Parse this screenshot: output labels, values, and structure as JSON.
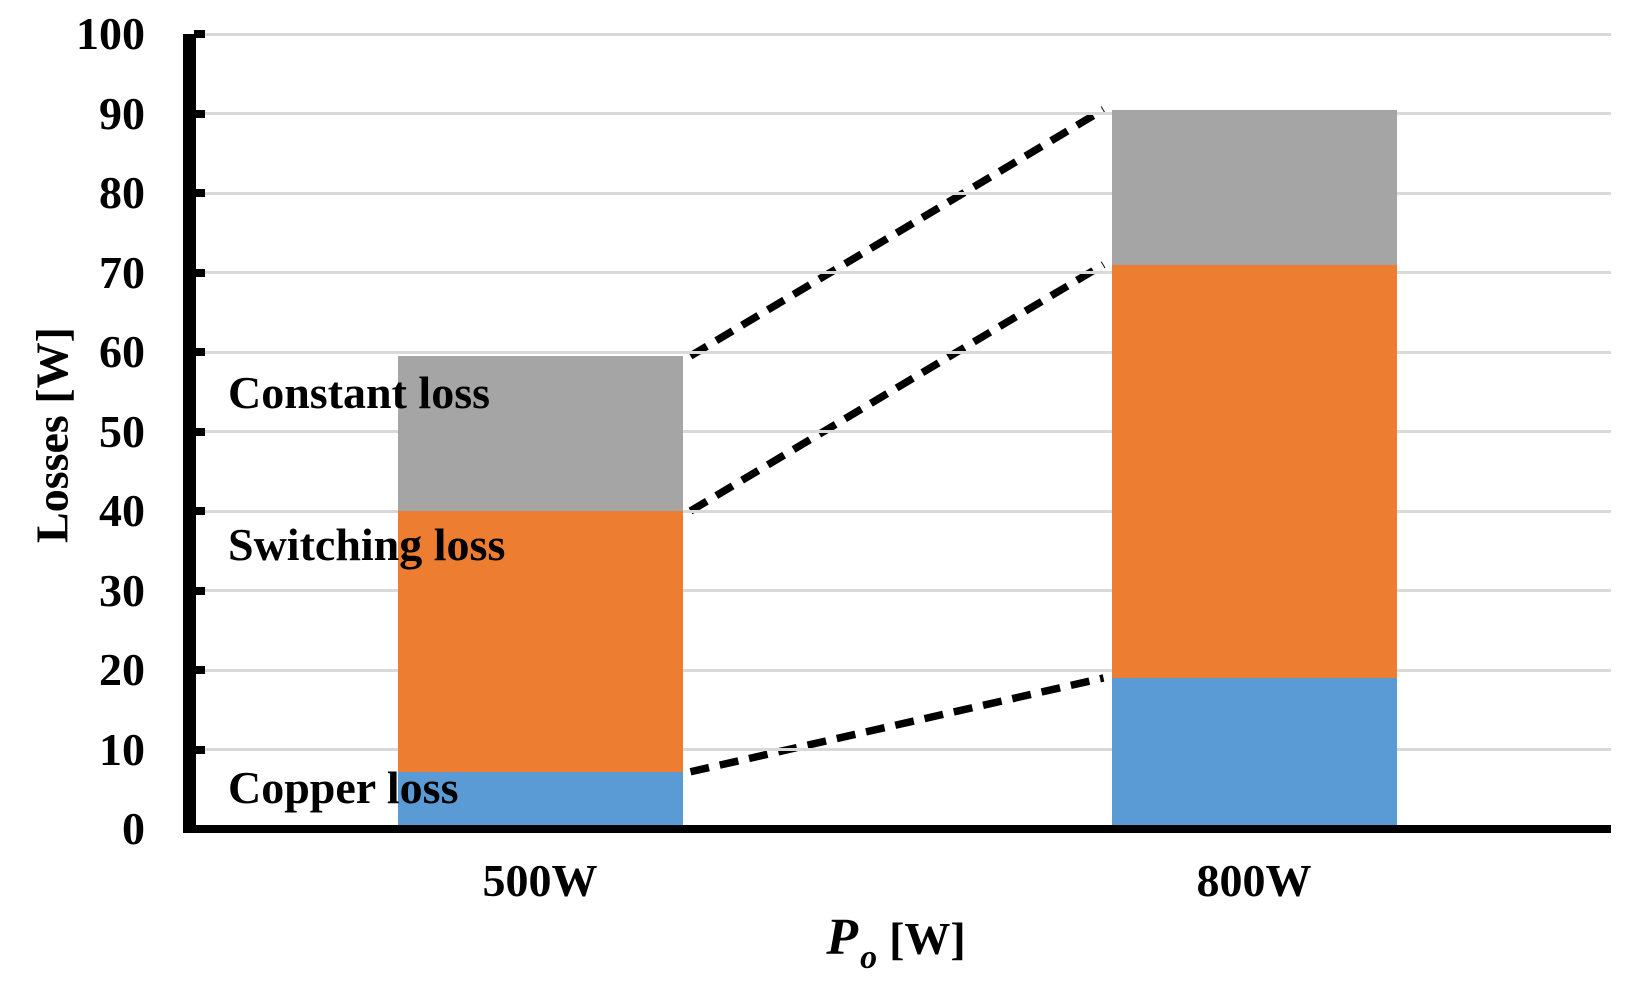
{
  "chart_data": {
    "type": "bar",
    "stacked": true,
    "title": "",
    "categories": [
      "500W",
      "800W"
    ],
    "series": [
      {
        "name": "Copper loss",
        "values": [
          7.2,
          19.0
        ],
        "color": "#5B9BD5"
      },
      {
        "name": "Switching loss",
        "values": [
          32.8,
          52.0
        ],
        "color": "#ED7D31"
      },
      {
        "name": "Constant loss",
        "values": [
          19.5,
          19.5
        ],
        "color": "#A5A5A5"
      }
    ],
    "stack_totals": [
      59.5,
      90.5
    ],
    "segment_boundaries": {
      "500W": [
        7.2,
        40.0,
        59.5
      ],
      "800W": [
        19.0,
        71.0,
        90.5
      ]
    },
    "connectors": {
      "style": "dashed",
      "color": "#000000",
      "note": "dashed lines join matching segment tops of the two bars"
    },
    "xlabel": {
      "symbol": "P",
      "subscript": "o",
      "unit": "[W]"
    },
    "ylabel": "Losses [W]",
    "ylim": [
      0,
      100
    ],
    "ytick_step": 10,
    "yticks": [
      0,
      10,
      20,
      30,
      40,
      50,
      60,
      70,
      80,
      90,
      100
    ],
    "grid": true,
    "legend_position": "labels-inside-plot-left",
    "colors": {
      "gridline": "#D9D9D9",
      "axis": "#000000",
      "text": "#000000",
      "background": "#FFFFFF"
    }
  }
}
